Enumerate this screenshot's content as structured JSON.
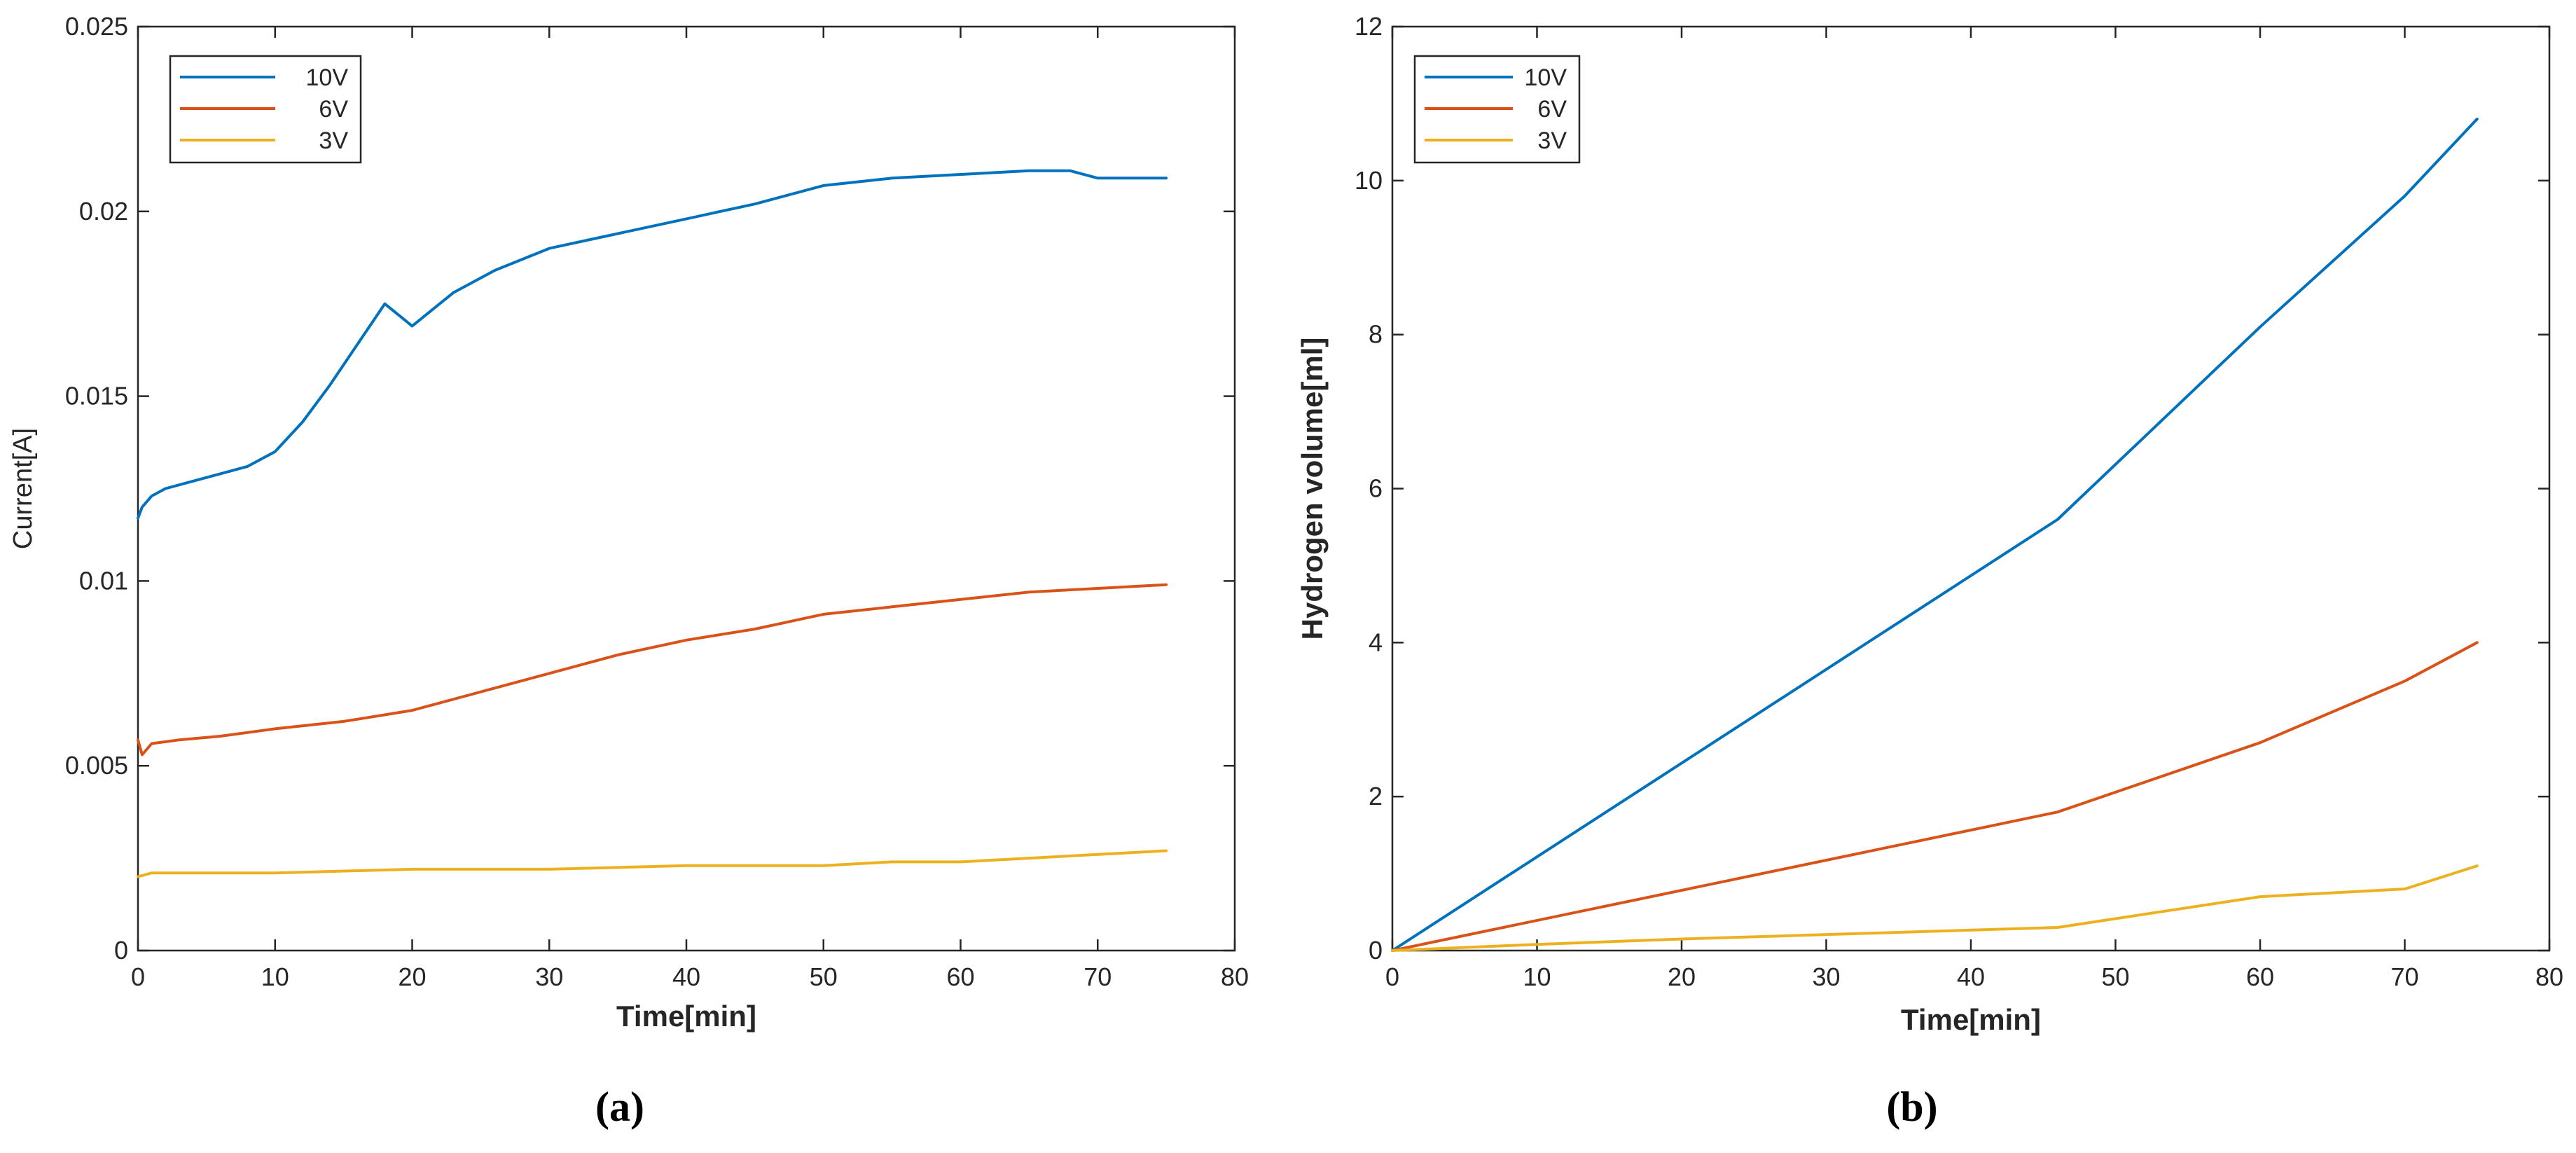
{
  "colors": {
    "s10": "#0072BD",
    "s6": "#D95319",
    "s3": "#EDB120",
    "axis": "#262626"
  },
  "chart_data": [
    {
      "type": "line",
      "id": "a",
      "caption": "(a)",
      "xlabel": "Time[min]",
      "ylabel": "Current[A]",
      "xlim": [
        0,
        80
      ],
      "ylim": [
        0,
        0.025
      ],
      "xticks": [
        "0",
        "10",
        "20",
        "30",
        "40",
        "50",
        "60",
        "70",
        "80"
      ],
      "yticks": [
        "0",
        "0.005",
        "0.01",
        "0.015",
        "0.02",
        "0.025"
      ],
      "legend_position": "top-left",
      "series": [
        {
          "name": "10V",
          "color_key": "s10",
          "x": [
            0,
            0.3,
            1,
            2,
            4,
            6,
            8,
            10,
            12,
            14,
            16,
            18,
            20,
            23,
            26,
            30,
            35,
            40,
            45,
            50,
            55,
            60,
            65,
            68,
            70,
            72,
            75
          ],
          "y": [
            0.0117,
            0.012,
            0.0123,
            0.0125,
            0.0127,
            0.0129,
            0.0131,
            0.0135,
            0.0143,
            0.0153,
            0.0164,
            0.0175,
            0.0169,
            0.0178,
            0.0184,
            0.019,
            0.0194,
            0.0198,
            0.0202,
            0.0207,
            0.0209,
            0.021,
            0.0211,
            0.0211,
            0.0209,
            0.0209,
            0.0209
          ]
        },
        {
          "name": "6V",
          "color_key": "s6",
          "x": [
            0,
            0.3,
            1,
            3,
            6,
            10,
            15,
            20,
            25,
            30,
            35,
            40,
            45,
            50,
            55,
            60,
            65,
            70,
            75
          ],
          "y": [
            0.0057,
            0.0053,
            0.0056,
            0.0057,
            0.0058,
            0.006,
            0.0062,
            0.0065,
            0.007,
            0.0075,
            0.008,
            0.0084,
            0.0087,
            0.0091,
            0.0093,
            0.0095,
            0.0097,
            0.0098,
            0.0099
          ]
        },
        {
          "name": "3V",
          "color_key": "s3",
          "x": [
            0,
            1,
            5,
            10,
            20,
            30,
            40,
            45,
            50,
            55,
            60,
            65,
            70,
            75
          ],
          "y": [
            0.002,
            0.0021,
            0.0021,
            0.0021,
            0.0022,
            0.0022,
            0.0023,
            0.0023,
            0.0023,
            0.0024,
            0.0024,
            0.0025,
            0.0026,
            0.0027
          ]
        }
      ]
    },
    {
      "type": "line",
      "id": "b",
      "caption": "(b)",
      "xlabel": "Time[min]",
      "ylabel": "Hydrogen volume[ml]",
      "xlim": [
        0,
        80
      ],
      "ylim": [
        0,
        12
      ],
      "xticks": [
        "0",
        "10",
        "20",
        "30",
        "40",
        "50",
        "60",
        "70",
        "80"
      ],
      "yticks": [
        "0",
        "2",
        "4",
        "6",
        "8",
        "10",
        "12"
      ],
      "legend_position": "top-left",
      "series": [
        {
          "name": "10V",
          "color_key": "s10",
          "x": [
            0,
            46,
            60,
            70,
            75
          ],
          "y": [
            0,
            5.6,
            8.1,
            9.8,
            10.8
          ]
        },
        {
          "name": "6V",
          "color_key": "s6",
          "x": [
            0,
            46,
            60,
            70,
            75
          ],
          "y": [
            0,
            1.8,
            2.7,
            3.5,
            4.0
          ]
        },
        {
          "name": "3V",
          "color_key": "s3",
          "x": [
            0,
            10,
            20,
            46,
            60,
            70,
            75
          ],
          "y": [
            0,
            0.08,
            0.15,
            0.3,
            0.7,
            0.8,
            1.1
          ]
        }
      ]
    }
  ]
}
